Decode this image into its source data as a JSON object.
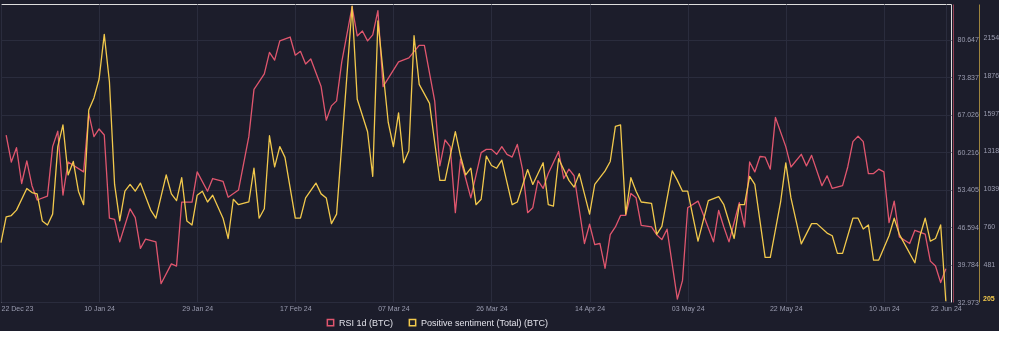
{
  "chart_data": {
    "type": "line",
    "legend": "bottom",
    "grid": true,
    "line_style": "solid",
    "marker": "none",
    "xlim": [
      "2023-12-22",
      "2024-06-23"
    ],
    "xticks": [
      {
        "value": "2023-12-22",
        "label": "22 Dec 23"
      },
      {
        "value": "2024-01-10",
        "label": "10 Jan 24"
      },
      {
        "value": "2024-01-29",
        "label": "29 Jan 24"
      },
      {
        "value": "2024-02-17",
        "label": "17 Feb 24"
      },
      {
        "value": "2024-03-07",
        "label": "07 Mar 24"
      },
      {
        "value": "2024-03-26",
        "label": "26 Mar 24"
      },
      {
        "value": "2024-04-14",
        "label": "14 Apr 24"
      },
      {
        "value": "2024-05-03",
        "label": "03 May 24"
      },
      {
        "value": "2024-05-22",
        "label": "22 May 24"
      },
      {
        "value": "2024-06-10",
        "label": "10 Jun 24"
      },
      {
        "value": "2024-06-22",
        "label": "22 Jun 24"
      }
    ],
    "ylim": [
      32.973,
      87.1
    ],
    "yticks": [
      32.973,
      39.784,
      46.594,
      53.405,
      60.216,
      67.026,
      73.837,
      80.647
    ],
    "y2lim": [
      200,
      2405
    ],
    "y2ticks": [
      481,
      760,
      1039,
      1318,
      1597,
      1876,
      2154
    ],
    "annotations": [
      "205"
    ],
    "series": [
      {
        "name": "RSI 1d (BTC)",
        "color": "#e0566e",
        "x": [
          "2023-12-23",
          "2023-12-24",
          "2023-12-25",
          "2023-12-26",
          "2023-12-27",
          "2023-12-28",
          "2023-12-29",
          "2023-12-31",
          "2024-01-01",
          "2024-01-02",
          "2024-01-03",
          "2024-01-04",
          "2024-01-07",
          "2024-01-08",
          "2024-01-09",
          "2024-01-10",
          "2024-01-11",
          "2024-01-12",
          "2024-01-13",
          "2024-01-14",
          "2024-01-16",
          "2024-01-17",
          "2024-01-18",
          "2024-01-19",
          "2024-01-21",
          "2024-01-22",
          "2024-01-24",
          "2024-01-25",
          "2024-01-26",
          "2024-01-28",
          "2024-01-29",
          "2024-01-31",
          "2024-02-01",
          "2024-02-03",
          "2024-02-04",
          "2024-02-06",
          "2024-02-08",
          "2024-02-09",
          "2024-02-11",
          "2024-02-12",
          "2024-02-13",
          "2024-02-14",
          "2024-02-16",
          "2024-02-17",
          "2024-02-18",
          "2024-02-19",
          "2024-02-20",
          "2024-02-22",
          "2024-02-23",
          "2024-02-24",
          "2024-02-25",
          "2024-02-26",
          "2024-02-28",
          "2024-02-29",
          "2024-03-01",
          "2024-03-02",
          "2024-03-03",
          "2024-03-04",
          "2024-03-05",
          "2024-03-06",
          "2024-03-08",
          "2024-03-10",
          "2024-03-12",
          "2024-03-13",
          "2024-03-15",
          "2024-03-16",
          "2024-03-17",
          "2024-03-18",
          "2024-03-19",
          "2024-03-20",
          "2024-03-21",
          "2024-03-22",
          "2024-03-24",
          "2024-03-25",
          "2024-03-26",
          "2024-03-27",
          "2024-03-28",
          "2024-03-29",
          "2024-03-30",
          "2024-03-31",
          "2024-04-01",
          "2024-04-02",
          "2024-04-03",
          "2024-04-04",
          "2024-04-05",
          "2024-04-06",
          "2024-04-08",
          "2024-04-09",
          "2024-04-10",
          "2024-04-11",
          "2024-04-13",
          "2024-04-14",
          "2024-04-15",
          "2024-04-16",
          "2024-04-17",
          "2024-04-18",
          "2024-04-19",
          "2024-04-20",
          "2024-04-21",
          "2024-04-22",
          "2024-04-23",
          "2024-04-24",
          "2024-04-26",
          "2024-04-27",
          "2024-04-28",
          "2024-04-29",
          "2024-05-01",
          "2024-05-02",
          "2024-05-03",
          "2024-05-05",
          "2024-05-06",
          "2024-05-08",
          "2024-05-09",
          "2024-05-10",
          "2024-05-11",
          "2024-05-13",
          "2024-05-14",
          "2024-05-15",
          "2024-05-16",
          "2024-05-17",
          "2024-05-18",
          "2024-05-19",
          "2024-05-20",
          "2024-05-22",
          "2024-05-23",
          "2024-05-25",
          "2024-05-26",
          "2024-05-27",
          "2024-05-29",
          "2024-05-30",
          "2024-05-31",
          "2024-06-02",
          "2024-06-03",
          "2024-06-04",
          "2024-06-05",
          "2024-06-06",
          "2024-06-07",
          "2024-06-08",
          "2024-06-09",
          "2024-06-10",
          "2024-06-11",
          "2024-06-12",
          "2024-06-13",
          "2024-06-15",
          "2024-06-16",
          "2024-06-18",
          "2024-06-19",
          "2024-06-20",
          "2024-06-21",
          "2024-06-22"
        ],
        "values": [
          63.3,
          58.4,
          61.0,
          54.5,
          58.6,
          54.1,
          51.5,
          52.2,
          61.2,
          64.0,
          52.4,
          58.4,
          56.6,
          67.2,
          63.0,
          64.4,
          63.3,
          48.2,
          48.0,
          43.9,
          49.9,
          48.3,
          42.7,
          44.4,
          43.9,
          36.3,
          39.9,
          39.5,
          51.1,
          51.1,
          56.6,
          53.1,
          55.4,
          54.9,
          52.0,
          53.3,
          63.0,
          71.6,
          74.4,
          78.3,
          76.9,
          80.4,
          81.1,
          77.8,
          78.5,
          76.2,
          77.1,
          72.1,
          66.0,
          68.6,
          69.5,
          76.6,
          86.6,
          81.3,
          82.2,
          80.4,
          81.5,
          85.9,
          72.1,
          73.6,
          76.6,
          77.3,
          79.6,
          79.6,
          69.5,
          57.7,
          62.4,
          61.2,
          49.2,
          58.9,
          55.4,
          51.9,
          60.1,
          60.7,
          60.7,
          59.8,
          61.2,
          59.8,
          59.3,
          61.6,
          57.1,
          49.2,
          50.1,
          55.0,
          53.6,
          56.3,
          60.3,
          55.4,
          57.1,
          55.9,
          43.6,
          47.1,
          43.4,
          43.6,
          39.1,
          45.2,
          46.6,
          48.7,
          48.7,
          52.7,
          51.9,
          46.9,
          46.6,
          45.2,
          44.3,
          46.2,
          33.5,
          36.9,
          50.1,
          51.3,
          48.9,
          43.9,
          49.6,
          46.6,
          43.9,
          51.0,
          46.6,
          58.4,
          56.6,
          59.4,
          59.3,
          57.1,
          66.5,
          61.2,
          57.5,
          59.8,
          57.7,
          59.6,
          54.1,
          55.9,
          53.6,
          54.1,
          57.5,
          62.1,
          63.1,
          62.1,
          56.3,
          56.3,
          57.1,
          56.6,
          47.4,
          51.3,
          44.8,
          43.6,
          46.0,
          45.3,
          40.4,
          39.5,
          36.5,
          39.0
        ]
      },
      {
        "name": "Positive sentiment (Total) (BTC)",
        "color": "#f2c94c",
        "axis": "y2",
        "x": [
          "2023-12-22",
          "2023-12-23",
          "2023-12-24",
          "2023-12-25",
          "2023-12-27",
          "2023-12-28",
          "2023-12-29",
          "2023-12-30",
          "2023-12-31",
          "2024-01-01",
          "2024-01-02",
          "2024-01-03",
          "2024-01-04",
          "2024-01-05",
          "2024-01-06",
          "2024-01-07",
          "2024-01-08",
          "2024-01-09",
          "2024-01-10",
          "2024-01-11",
          "2024-01-12",
          "2024-01-13",
          "2024-01-14",
          "2024-01-15",
          "2024-01-16",
          "2024-01-17",
          "2024-01-18",
          "2024-01-20",
          "2024-01-21",
          "2024-01-23",
          "2024-01-24",
          "2024-01-25",
          "2024-01-26",
          "2024-01-27",
          "2024-01-28",
          "2024-01-29",
          "2024-01-30",
          "2024-01-31",
          "2024-02-01",
          "2024-02-03",
          "2024-02-04",
          "2024-02-05",
          "2024-02-06",
          "2024-02-08",
          "2024-02-09",
          "2024-02-10",
          "2024-02-11",
          "2024-02-12",
          "2024-02-13",
          "2024-02-14",
          "2024-02-15",
          "2024-02-17",
          "2024-02-18",
          "2024-02-19",
          "2024-02-21",
          "2024-02-22",
          "2024-02-23",
          "2024-02-24",
          "2024-02-25",
          "2024-02-28",
          "2024-02-29",
          "2024-03-02",
          "2024-03-03",
          "2024-03-04",
          "2024-03-06",
          "2024-03-07",
          "2024-03-08",
          "2024-03-09",
          "2024-03-10",
          "2024-03-11",
          "2024-03-12",
          "2024-03-14",
          "2024-03-15",
          "2024-03-16",
          "2024-03-17",
          "2024-03-19",
          "2024-03-20",
          "2024-03-21",
          "2024-03-22",
          "2024-03-23",
          "2024-03-24",
          "2024-03-25",
          "2024-03-26",
          "2024-03-27",
          "2024-03-28",
          "2024-03-30",
          "2024-03-31",
          "2024-04-02",
          "2024-04-03",
          "2024-04-05",
          "2024-04-06",
          "2024-04-07",
          "2024-04-08",
          "2024-04-10",
          "2024-04-11",
          "2024-04-12",
          "2024-04-14",
          "2024-04-15",
          "2024-04-17",
          "2024-04-18",
          "2024-04-19",
          "2024-04-20",
          "2024-04-21",
          "2024-04-22",
          "2024-04-23",
          "2024-04-24",
          "2024-04-26",
          "2024-04-27",
          "2024-04-28",
          "2024-04-30",
          "2024-05-01",
          "2024-05-02",
          "2024-05-03",
          "2024-05-05",
          "2024-05-07",
          "2024-05-09",
          "2024-05-10",
          "2024-05-12",
          "2024-05-13",
          "2024-05-14",
          "2024-05-15",
          "2024-05-16",
          "2024-05-18",
          "2024-05-19",
          "2024-05-21",
          "2024-05-22",
          "2024-05-23",
          "2024-05-25",
          "2024-05-27",
          "2024-05-28",
          "2024-05-30",
          "2024-05-31",
          "2024-06-01",
          "2024-06-02",
          "2024-06-04",
          "2024-06-05",
          "2024-06-06",
          "2024-06-07",
          "2024-06-08",
          "2024-06-09",
          "2024-06-11",
          "2024-06-12",
          "2024-06-13",
          "2024-06-14",
          "2024-06-16",
          "2024-06-17",
          "2024-06-18",
          "2024-06-19",
          "2024-06-20",
          "2024-06-21",
          "2024-06-22"
        ],
        "values": [
          640,
          830,
          840,
          880,
          1040,
          1010,
          1000,
          800,
          770,
          850,
          1350,
          1510,
          1140,
          1240,
          1020,
          920,
          1620,
          1710,
          1850,
          2180,
          1830,
          1070,
          800,
          1020,
          1070,
          1020,
          1080,
          880,
          820,
          1140,
          1000,
          950,
          1120,
          800,
          770,
          990,
          1020,
          940,
          990,
          820,
          670,
          960,
          920,
          940,
          1190,
          820,
          890,
          1430,
          1200,
          1350,
          1270,
          820,
          820,
          970,
          1080,
          1000,
          970,
          780,
          850,
          2390,
          1700,
          1460,
          1130,
          2280,
          1530,
          1350,
          1600,
          1230,
          1320,
          2170,
          1810,
          1670,
          1380,
          1100,
          1100,
          1460,
          1280,
          1140,
          1190,
          920,
          960,
          1280,
          1210,
          1190,
          1250,
          920,
          940,
          1180,
          1070,
          1230,
          920,
          910,
          1260,
          1100,
          1050,
          1150,
          850,
          1070,
          1170,
          1240,
          1500,
          1510,
          850,
          1120,
          1020,
          940,
          930,
          700,
          760,
          1170,
          1100,
          1020,
          1020,
          650,
          950,
          980,
          920,
          670,
          920,
          920,
          1130,
          1070,
          530,
          530,
          940,
          1230,
          970,
          630,
          780,
          780,
          710,
          690,
          560,
          560,
          820,
          820,
          740,
          770,
          510,
          510,
          690,
          820,
          700,
          630,
          490,
          690,
          820,
          650,
          670,
          770,
          205
        ]
      }
    ]
  }
}
